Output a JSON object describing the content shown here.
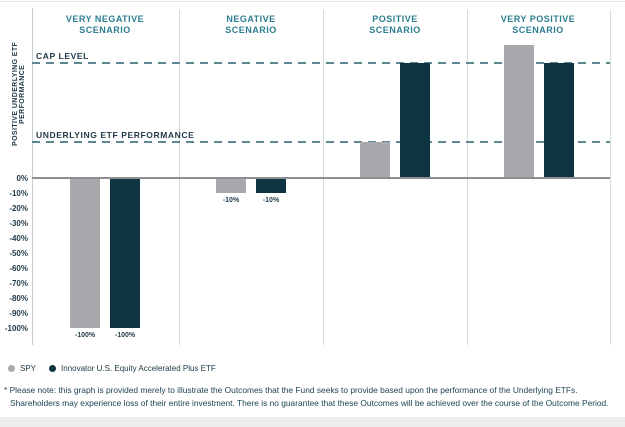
{
  "chart_data": {
    "type": "bar",
    "title": "",
    "categories": [
      "VERY NEGATIVE\nSCENARIO",
      "NEGATIVE\nSCENARIO",
      "POSITIVE\nSCENARIO",
      "VERY POSITIVE\nSCENARIO"
    ],
    "series": [
      {
        "name": "SPY",
        "color": "#a7a9ac",
        "values": [
          -100,
          -10,
          24,
          89
        ],
        "bar_labels": [
          "-100%",
          "-10%",
          "",
          ""
        ]
      },
      {
        "name": "Innovator U.S. Equity Accelerated Plus ETF",
        "color": "#0e3442",
        "values": [
          -100,
          -10,
          77,
          77
        ],
        "bar_labels": [
          "-100%",
          "-10%",
          "",
          ""
        ]
      }
    ],
    "reference_lines": [
      {
        "label": "CAP LEVEL",
        "value": 77
      },
      {
        "label": "UNDERLYING ETF PERFORMANCE",
        "value": 24
      }
    ],
    "yaxis": {
      "label": "POSITIVE UNDERLYING ETF PERFORMANCE",
      "ticks": [
        "0%",
        "-10%",
        "-20%",
        "-30%",
        "-40%",
        "-50%",
        "-60%",
        "-70%",
        "-80%",
        "-90%",
        "-100%"
      ],
      "min": -100,
      "max": 112
    },
    "legend_position": "bottom-left"
  },
  "legend": {
    "items": [
      {
        "label": "SPY",
        "color": "#a7a9ac"
      },
      {
        "label": "Innovator U.S. Equity Accelerated Plus ETF",
        "color": "#0e3442"
      }
    ]
  },
  "footnote": {
    "line1": "* Please note: this graph is provided merely to illustrate the Outcomes that the Fund seeks to provide based upon the performance of the Underlying ETFs.",
    "line2": "Shareholders may experience loss of their entire investment. There is no guarantee that these Outcomes will be achieved over the course of the Outcome Period."
  },
  "colors": {
    "header_teal": "#2b7e90",
    "dark_navy": "#0e3442",
    "gray": "#a7a9ac",
    "dashed_line": "#5f8793",
    "zero_line": "#8d8f92",
    "grid_line": "#d6d8d9",
    "text_dark": "#223b49"
  }
}
